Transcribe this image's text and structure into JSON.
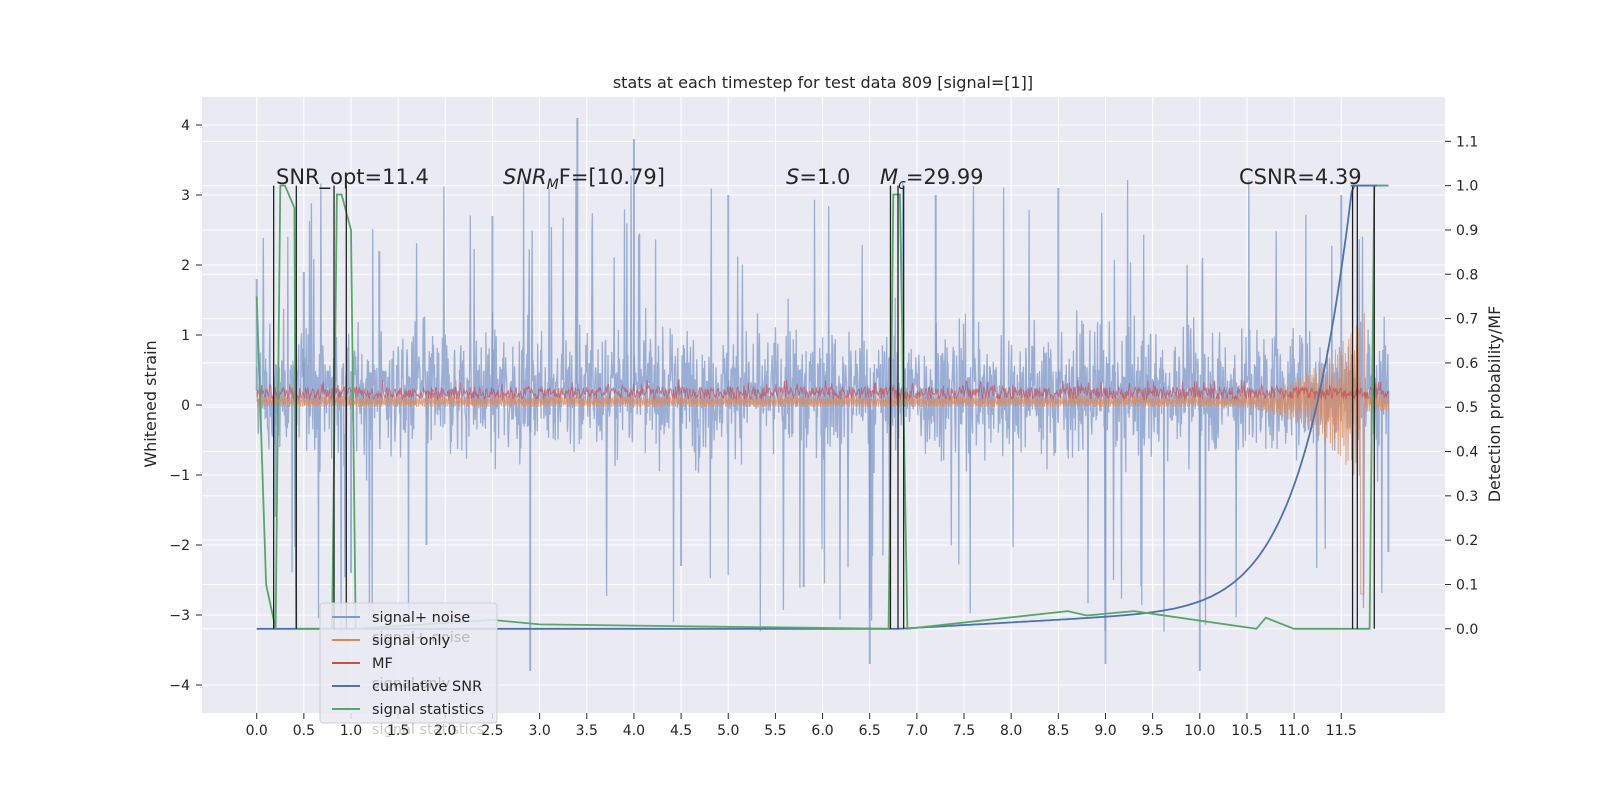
{
  "chart_data": {
    "type": "line",
    "title": "stats at each timestep for test data 809 [signal=[1]]",
    "xlabel": "",
    "ylabel": "Whitened strain",
    "y2label": "Detection probability/MF",
    "xlim": [
      -0.58,
      12.6
    ],
    "ylim": [
      -4.4,
      4.4
    ],
    "y2lim": [
      -0.19,
      1.2
    ],
    "grid": true,
    "legend_position": "lower-left",
    "x_ticks": [
      "0.0",
      "0.5",
      "1.0",
      "1.5",
      "2.0",
      "2.5",
      "3.0",
      "3.5",
      "4.0",
      "4.5",
      "5.0",
      "5.5",
      "6.0",
      "6.5",
      "7.0",
      "7.5",
      "8.0",
      "8.5",
      "9.0",
      "9.5",
      "10.0",
      "10.5",
      "11.0",
      "11.5"
    ],
    "y_ticks": [
      "4",
      "3",
      "2",
      "1",
      "0",
      "−1",
      "−2",
      "−3",
      "−4"
    ],
    "y2_ticks": [
      "1.1",
      "1.0",
      "0.9",
      "0.8",
      "0.7",
      "0.6",
      "0.5",
      "0.4",
      "0.3",
      "0.2",
      "0.1",
      "0.0"
    ],
    "annotations": {
      "snr_opt": "SNR_opt=11.4",
      "snr_mf_a": "SNR",
      "snr_mf_sub": "M",
      "snr_mf_b": "F=[10.79]",
      "s_a": "S",
      "s_b": "=1.0",
      "mc_a": "M",
      "mc_sub": "c",
      "mc_b": "=29.99",
      "csnr": "CSNR=4.39"
    },
    "ghost_legend": [
      "signal+ noise",
      "signal only",
      "signal statistics"
    ],
    "series": [
      {
        "name": "signal+ noise",
        "color": "#7F9ACB",
        "description": "whitened strain, noise band approx -1.6 to 2.0 with spikes up to 4.1 and down to -3.8",
        "points": [
          [
            0.0,
            1.8
          ],
          [
            0.2,
            -1.6
          ],
          [
            0.5,
            1.9
          ],
          [
            1.0,
            -2.4
          ],
          [
            1.3,
            2.2
          ],
          [
            1.8,
            -2.0
          ],
          [
            2.5,
            2.7
          ],
          [
            2.9,
            -3.8
          ],
          [
            3.4,
            4.1
          ],
          [
            4.0,
            3.8
          ],
          [
            4.5,
            -2.3
          ],
          [
            5.0,
            3.0
          ],
          [
            5.8,
            -2.6
          ],
          [
            6.5,
            -3.7
          ],
          [
            7.2,
            3.0
          ],
          [
            8.5,
            3.1
          ],
          [
            9.0,
            -3.7
          ],
          [
            10.0,
            -3.8
          ],
          [
            11.5,
            3.0
          ],
          [
            12.0,
            -2.1
          ]
        ]
      },
      {
        "name": "signal only",
        "color": "#DD8452",
        "description": "chirp waveform, small amplitude growing to about +1.1/-2.7 near 11.7",
        "points": [
          [
            0.0,
            0.05
          ],
          [
            6.0,
            0.08
          ],
          [
            10.0,
            0.15
          ],
          [
            11.0,
            0.4
          ],
          [
            11.4,
            0.8
          ],
          [
            11.6,
            1.1
          ],
          [
            11.72,
            -2.7
          ],
          [
            11.8,
            0.2
          ],
          [
            12.0,
            0.1
          ]
        ]
      },
      {
        "name": "MF",
        "color": "#C44E52",
        "description": "matched filter output, around 0.0 to 0.3",
        "points": [
          [
            0.0,
            0.1
          ],
          [
            1.0,
            0.2
          ],
          [
            3.0,
            0.25
          ],
          [
            6.8,
            0.3
          ],
          [
            9.0,
            0.2
          ],
          [
            11.5,
            0.25
          ],
          [
            12.0,
            0.1
          ]
        ]
      },
      {
        "name": "cumilative SNR",
        "color": "#4C72B0",
        "description": "cumulative SNR on right axis, rising after 6.8 to 1.0 near 11.6",
        "points": [
          [
            0.0,
            0.0
          ],
          [
            6.8,
            0.0
          ],
          [
            7.5,
            0.01
          ],
          [
            8.5,
            0.04
          ],
          [
            9.5,
            0.07
          ],
          [
            10.5,
            0.12
          ],
          [
            11.0,
            0.2
          ],
          [
            11.3,
            0.3
          ],
          [
            11.5,
            0.5
          ],
          [
            11.6,
            0.8
          ],
          [
            11.65,
            1.0
          ],
          [
            12.0,
            1.0
          ]
        ]
      },
      {
        "name": "signal statistics",
        "color": "#55A868",
        "description": "detection probability on right axis with peaks near 0.3, 0.9, 6.8 and 11.85",
        "points": [
          [
            0.0,
            0.75
          ],
          [
            0.1,
            0.1
          ],
          [
            0.2,
            0.0
          ],
          [
            0.25,
            1.0
          ],
          [
            0.3,
            1.0
          ],
          [
            0.4,
            0.95
          ],
          [
            0.42,
            0.0
          ],
          [
            0.8,
            0.0
          ],
          [
            0.85,
            0.98
          ],
          [
            0.9,
            0.98
          ],
          [
            1.0,
            0.9
          ],
          [
            1.05,
            0.0
          ],
          [
            2.5,
            0.02
          ],
          [
            3.0,
            0.01
          ],
          [
            6.7,
            0.0
          ],
          [
            6.75,
            0.98
          ],
          [
            6.82,
            0.98
          ],
          [
            6.9,
            0.0
          ],
          [
            8.6,
            0.04
          ],
          [
            8.8,
            0.03
          ],
          [
            9.3,
            0.04
          ],
          [
            10.6,
            0.0
          ],
          [
            10.7,
            0.025
          ],
          [
            11.0,
            0.0
          ],
          [
            11.8,
            0.0
          ],
          [
            11.85,
            1.0
          ],
          [
            12.0,
            1.0
          ]
        ]
      }
    ]
  }
}
